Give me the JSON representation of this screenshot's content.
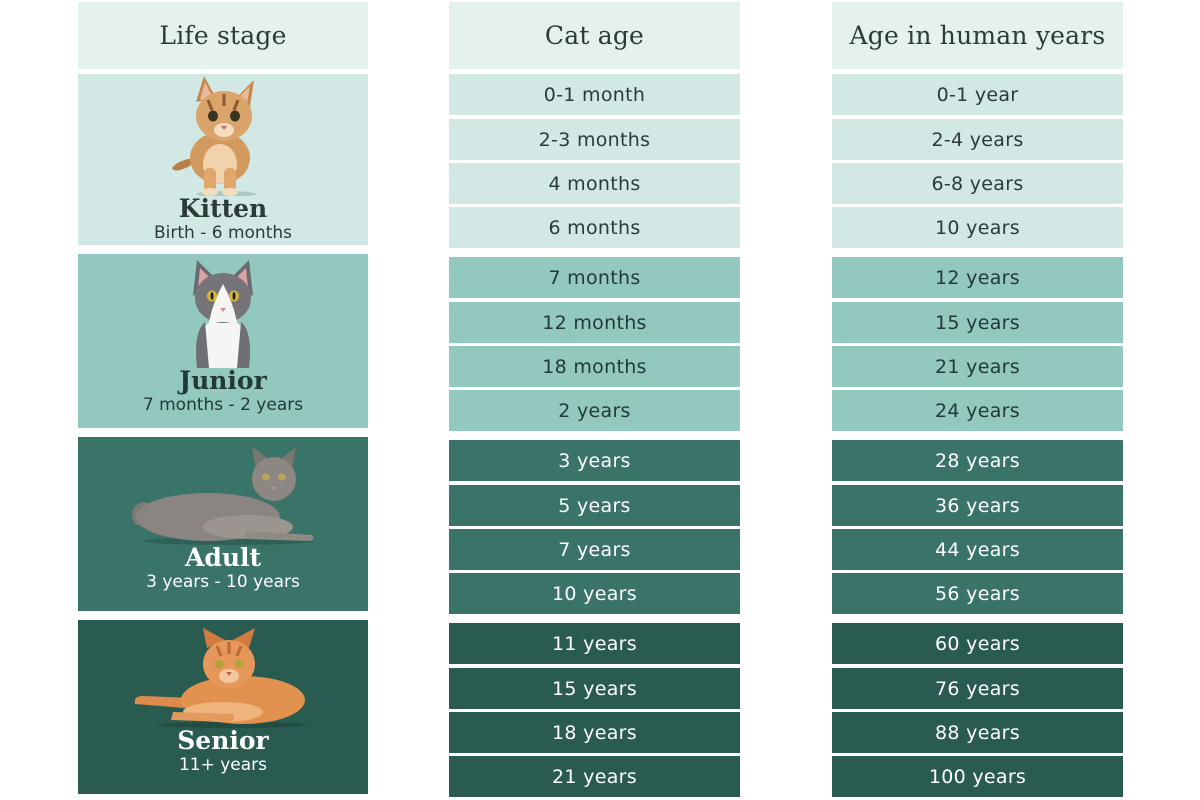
{
  "headers": {
    "life_stage": "Life stage",
    "cat_age": "Cat age",
    "human_age": "Age in human years"
  },
  "stages": [
    {
      "name": "Kitten",
      "range": "Birth - 6 months",
      "icon": "kitten-tabby-photo",
      "cat_ages": [
        "0-1 month",
        "2-3 months",
        "4 months",
        "6 months"
      ],
      "human_ages": [
        "0-1 year",
        "2-4 years",
        "6-8 years",
        "10 years"
      ]
    },
    {
      "name": "Junior",
      "range": "7 months - 2 years",
      "icon": "junior-grey-white-cat-photo",
      "cat_ages": [
        "7 months",
        "12 months",
        "18 months",
        "2 years"
      ],
      "human_ages": [
        "12 years",
        "15 years",
        "21 years",
        "24 years"
      ]
    },
    {
      "name": "Adult",
      "range": "3 years - 10 years",
      "icon": "adult-grey-cat-lying-photo",
      "cat_ages": [
        "3 years",
        "5 years",
        "7 years",
        "10 years"
      ],
      "human_ages": [
        "28 years",
        "36 years",
        "44 years",
        "56 years"
      ]
    },
    {
      "name": "Senior",
      "range": "11+ years",
      "icon": "senior-orange-cat-lying-photo",
      "cat_ages": [
        "11 years",
        "15 years",
        "18 years",
        "21 years"
      ],
      "human_ages": [
        "60 years",
        "76 years",
        "88 years",
        "100 years"
      ]
    }
  ],
  "colors": {
    "header": "#e4f1ef",
    "kitten": "#d2e8e4",
    "junior": "#93c8bf",
    "adult": "#3a7367",
    "senior": "#2a5b51"
  }
}
